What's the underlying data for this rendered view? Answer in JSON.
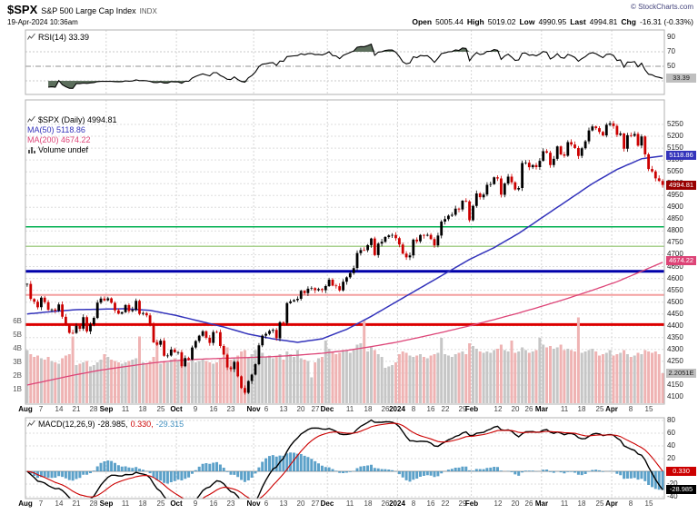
{
  "header": {
    "symbol": "$SPX",
    "name": "S&P 500 Large Cap Index",
    "exchange": "INDX",
    "datetime": "19-Apr-2024 10:36am",
    "copyright": "© StockCharts.com",
    "quote": {
      "open_label": "Open",
      "open": "5005.44",
      "high_label": "High",
      "high": "5019.02",
      "low_label": "Low",
      "low": "4990.95",
      "last_label": "Last",
      "last": "4994.81",
      "chg_label": "Chg",
      "chg": "-16.31 (-0.33%)"
    }
  },
  "rsi_panel": {
    "legend": "RSI(14) 33.39",
    "axis_labels": [
      90,
      70,
      50,
      30
    ],
    "last_label": "33.39"
  },
  "main_panel": {
    "legend_symbol": "$SPX (Daily) 4994.81",
    "legend_ma50": "MA(50) 5118.86",
    "legend_ma200": "MA(200) 4674.22",
    "legend_volume": "Volume undef",
    "volume_axis": [
      "6B",
      "5B",
      "4B",
      "3B",
      "2B",
      "1B"
    ],
    "boxes": {
      "ma50": "5118.86",
      "last": "4994.81",
      "ma200": "4674.22",
      "volume": "2.2051E"
    }
  },
  "macd_panel": {
    "label": "MACD(12,26,9)",
    "macd_value": "-28.985,",
    "signal_value": "0.330,",
    "hist_value": "-29.315",
    "axis_labels": [
      80,
      60,
      40,
      20,
      0,
      -20,
      -40
    ],
    "boxes": {
      "signal": "0.330",
      "macd": "-28.985"
    }
  },
  "x_axis": {
    "ticks": [
      {
        "i": 0,
        "label": "Aug",
        "bold": true
      },
      {
        "i": 4,
        "label": "7"
      },
      {
        "i": 9,
        "label": "14"
      },
      {
        "i": 14,
        "label": "21"
      },
      {
        "i": 19,
        "label": "28"
      },
      {
        "i": 23,
        "label": "Sep",
        "bold": true
      },
      {
        "i": 28,
        "label": "11"
      },
      {
        "i": 33,
        "label": "18"
      },
      {
        "i": 38,
        "label": "25"
      },
      {
        "i": 43,
        "label": "Oct",
        "bold": true
      },
      {
        "i": 48,
        "label": "9"
      },
      {
        "i": 53,
        "label": "16"
      },
      {
        "i": 58,
        "label": "23"
      },
      {
        "i": 65,
        "label": "Nov",
        "bold": true
      },
      {
        "i": 68,
        "label": "6"
      },
      {
        "i": 73,
        "label": "13"
      },
      {
        "i": 78,
        "label": "20"
      },
      {
        "i": 82,
        "label": "27"
      },
      {
        "i": 86,
        "label": "Dec",
        "bold": true
      },
      {
        "i": 92,
        "label": "11"
      },
      {
        "i": 97,
        "label": "18"
      },
      {
        "i": 102,
        "label": "26"
      },
      {
        "i": 106,
        "label": "2024",
        "bold": true
      },
      {
        "i": 110,
        "label": "8"
      },
      {
        "i": 115,
        "label": "16"
      },
      {
        "i": 119,
        "label": "22"
      },
      {
        "i": 124,
        "label": "29"
      },
      {
        "i": 127,
        "label": "Feb",
        "bold": true
      },
      {
        "i": 134,
        "label": "12"
      },
      {
        "i": 139,
        "label": "20"
      },
      {
        "i": 143,
        "label": "26"
      },
      {
        "i": 147,
        "label": "Mar",
        "bold": true
      },
      {
        "i": 153,
        "label": "11"
      },
      {
        "i": 158,
        "label": "18"
      },
      {
        "i": 163,
        "label": "25"
      },
      {
        "i": 167,
        "label": "Apr",
        "bold": true
      },
      {
        "i": 172,
        "label": "8"
      },
      {
        "i": 177,
        "label": "15"
      }
    ]
  },
  "chart_data": {
    "type": "candlestick",
    "symbol": "$SPX",
    "timeframe": "daily",
    "x_range": "Aug 2023 to 19-Apr-2024",
    "n_points": 182,
    "price_axis": {
      "min": 4100,
      "max": 5250,
      "step": 50
    },
    "month_start_indices": [
      0,
      23,
      43,
      65,
      86,
      106,
      127,
      147,
      167
    ],
    "close": [
      4576.73,
      4513.39,
      4501.89,
      4478.03,
      4518.44,
      4499.38,
      4467.71,
      4468.83,
      4464.05,
      4489.72,
      4437.86,
      4404.33,
      4370.36,
      4369.71,
      4399.77,
      4387.55,
      4436.01,
      4376.31,
      4405.71,
      4433.31,
      4497.63,
      4514.87,
      4507.66,
      4515.77,
      4496.83,
      4465.48,
      4451.14,
      4457.49,
      4487.46,
      4461.9,
      4467.44,
      4505.1,
      4450.32,
      4453.53,
      4443.95,
      4402.2,
      4330.0,
      4320.06,
      4337.44,
      4273.53,
      4274.51,
      4299.7,
      4288.05,
      4288.39,
      4229.45,
      4263.75,
      4258.19,
      4308.5,
      4335.66,
      4358.24,
      4376.95,
      4349.61,
      4327.78,
      4373.63,
      4373.2,
      4314.6,
      4278.0,
      4224.16,
      4217.04,
      4247.68,
      4186.77,
      4137.23,
      4117.37,
      4166.82,
      4193.8,
      4237.86,
      4317.78,
      4358.34,
      4365.98,
      4378.38,
      4382.78,
      4347.35,
      4415.24,
      4411.55,
      4495.7,
      4502.88,
      4508.24,
      4514.02,
      4547.38,
      4538.19,
      4556.62,
      4559.34,
      4550.43,
      4554.89,
      4550.58,
      4567.8,
      4594.63,
      4569.78,
      4567.18,
      4549.34,
      4585.59,
      4604.37,
      4622.44,
      4643.7,
      4707.09,
      4719.55,
      4719.19,
      4740.56,
      4768.37,
      4698.35,
      4746.75,
      4754.63,
      4774.75,
      4781.58,
      4783.35,
      4769.83,
      4742.83,
      4704.81,
      4688.68,
      4697.24,
      4763.54,
      4756.5,
      4783.45,
      4780.24,
      4783.83,
      4765.98,
      4739.21,
      4780.94,
      4839.81,
      4850.43,
      4864.6,
      4868.55,
      4894.16,
      4890.97,
      4927.93,
      4924.97,
      4845.65,
      4906.19,
      4958.61,
      4942.81,
      4954.23,
      4995.06,
      4997.91,
      5026.61,
      5021.84,
      4953.17,
      5000.62,
      5029.73,
      5005.57,
      4975.51,
      4981.8,
      5087.03,
      5088.8,
      5069.53,
      5078.18,
      5069.76,
      5096.27,
      5137.08,
      5130.95,
      5078.65,
      5104.76,
      5157.36,
      5123.69,
      5117.94,
      5175.27,
      5165.31,
      5150.48,
      5117.09,
      5149.42,
      5178.51,
      5224.62,
      5241.53,
      5234.18,
      5218.19,
      5203.58,
      5248.49,
      5254.35,
      5243.77,
      5205.81,
      5211.49,
      5147.21,
      5204.34,
      5202.39,
      5209.91,
      5160.64,
      5199.06,
      5123.41,
      5061.82,
      5051.41,
      5022.21,
      5011.12,
      4994.81
    ],
    "volume_billions": [
      3.9,
      3.6,
      3.4,
      3.5,
      3.3,
      3.2,
      3.4,
      3.1,
      3.0,
      2.9,
      3.3,
      3.5,
      3.6,
      4.9,
      2.8,
      2.9,
      3.0,
      3.1,
      2.7,
      2.8,
      3.0,
      3.2,
      3.6,
      3.4,
      3.2,
      3.1,
      3.0,
      2.9,
      3.0,
      3.1,
      3.2,
      3.3,
      4.9,
      3.0,
      2.9,
      3.1,
      3.4,
      4.6,
      2.9,
      3.1,
      3.0,
      3.2,
      3.3,
      3.1,
      3.3,
      3.2,
      3.0,
      3.3,
      3.0,
      3.1,
      3.2,
      3.1,
      3.0,
      2.9,
      3.0,
      3.3,
      3.4,
      4.1,
      3.2,
      3.3,
      3.5,
      3.8,
      3.9,
      3.4,
      3.6,
      3.9,
      4.0,
      3.7,
      3.4,
      3.5,
      3.3,
      3.4,
      3.6,
      3.2,
      3.8,
      3.6,
      3.4,
      3.9,
      3.3,
      3.2,
      3.1,
      1.9,
      3.0,
      3.3,
      3.4,
      4.6,
      4.0,
      3.8,
      3.6,
      3.7,
      3.8,
      3.9,
      3.7,
      3.9,
      4.3,
      4.4,
      6.1,
      3.8,
      4.1,
      3.9,
      3.6,
      3.4,
      2.6,
      2.7,
      2.8,
      3.0,
      3.6,
      3.8,
      3.7,
      3.5,
      3.4,
      3.5,
      3.6,
      3.4,
      3.3,
      3.5,
      3.6,
      3.7,
      4.8,
      3.6,
      3.5,
      3.4,
      3.6,
      3.7,
      3.8,
      3.6,
      4.4,
      4.2,
      4.0,
      3.8,
      3.7,
      3.8,
      3.7,
      3.9,
      4.0,
      4.3,
      3.9,
      3.8,
      4.6,
      3.7,
      3.8,
      4.1,
      3.9,
      3.7,
      3.8,
      3.9,
      4.8,
      4.3,
      4.1,
      4.2,
      4.0,
      4.1,
      4.3,
      3.9,
      4.0,
      3.9,
      3.8,
      6.3,
      3.7,
      3.8,
      3.9,
      4.0,
      3.8,
      3.5,
      3.6,
      3.7,
      3.9,
      3.5,
      3.6,
      3.7,
      3.9,
      3.6,
      3.4,
      3.5,
      3.7,
      3.6,
      3.9,
      3.8,
      3.7,
      3.8,
      3.6,
      2.2
    ],
    "ma50_sampled": {
      "step": 7,
      "values": [
        4450,
        4460,
        4468,
        4470,
        4472,
        4465,
        4445,
        4420,
        4395,
        4365,
        4345,
        4330,
        4345,
        4385,
        4440,
        4500,
        4560,
        4620,
        4680,
        4730,
        4790,
        4860,
        4930,
        5000,
        5060,
        5105,
        5118.86
      ]
    },
    "ma200_sampled": {
      "step": 7,
      "values": [
        4150,
        4172,
        4194,
        4213,
        4228,
        4242,
        4253,
        4259,
        4263,
        4266,
        4270,
        4276,
        4284,
        4296,
        4312,
        4330,
        4352,
        4375,
        4400,
        4426,
        4454,
        4484,
        4516,
        4550,
        4586,
        4630,
        4674.22
      ]
    },
    "hlines": [
      {
        "value": 4818,
        "color": "#00b050",
        "width": 1.5
      },
      {
        "value": 4735,
        "color": "#a8d08d",
        "width": 1.5
      },
      {
        "value": 4630,
        "color": "#0000aa",
        "width": 3
      },
      {
        "value": 4530,
        "color": "#f4a0a0",
        "width": 2
      },
      {
        "value": 4405,
        "color": "#dd0000",
        "width": 3
      }
    ],
    "indicators": {
      "rsi": {
        "period": 14,
        "last": 33.39,
        "overbought": 70,
        "oversold": 30,
        "axis": [
          90,
          70,
          50,
          30
        ]
      },
      "macd": {
        "fast": 12,
        "slow": 26,
        "signal": 9,
        "macd_last": -28.985,
        "signal_last": 0.33,
        "hist_last": -29.315,
        "axis": [
          80,
          60,
          40,
          20,
          0,
          -20,
          -40
        ]
      }
    },
    "colors": {
      "up": "#000000",
      "down": "#cc0000",
      "ma50": "#3333bb",
      "ma200": "#dd4477",
      "vol_up": "#c6c6c6",
      "vol_down": "#efb3b3",
      "macd_hist": "#4090c0",
      "signal_line": "#cc0000",
      "rsi_fill": "#5c6e5c"
    }
  }
}
